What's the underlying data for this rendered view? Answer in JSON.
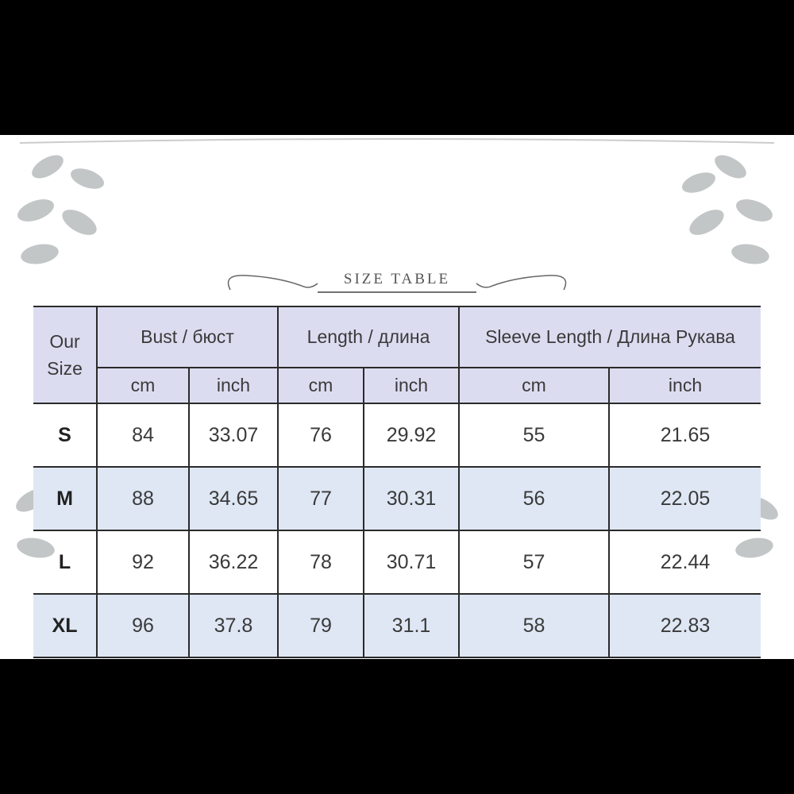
{
  "title": "SIZE TABLE",
  "header": {
    "our_size": "Our Size",
    "groups": [
      "Bust / бюст",
      "Length / длина",
      "Sleeve Length / Длина Рукава"
    ],
    "units": [
      "cm",
      "inch",
      "cm",
      "inch",
      "cm",
      "inch"
    ]
  },
  "rows": [
    {
      "size": "S",
      "values": [
        "84",
        "33.07",
        "76",
        "29.92",
        "55",
        "21.65"
      ]
    },
    {
      "size": "M",
      "values": [
        "88",
        "34.65",
        "77",
        "30.31",
        "56",
        "22.05"
      ]
    },
    {
      "size": "L",
      "values": [
        "92",
        "36.22",
        "78",
        "30.71",
        "57",
        "22.44"
      ]
    },
    {
      "size": "XL",
      "values": [
        "96",
        "37.8",
        "79",
        "31.1",
        "58",
        "22.83"
      ]
    }
  ],
  "colors": {
    "header_bg": "#dcdcf1",
    "alt_row_bg": "#dfe7f4",
    "border": "#2a2a2a",
    "decoration": "#b5b9b9"
  }
}
